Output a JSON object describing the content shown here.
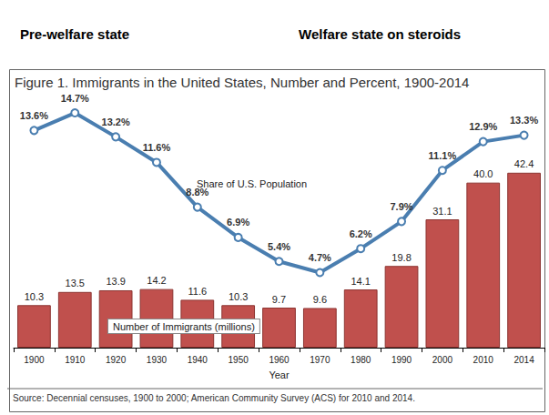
{
  "chart_data": {
    "type": "bar",
    "title": "Figure 1. Immigrants in the United States, Number and Percent, 1900-2014",
    "annotations": [
      "Pre-welfare state",
      "Welfare state on steroids",
      "Source: Decennial censuses, 1900 to 2000; American Community Survey (ACS) for 2010 and 2014."
    ],
    "xlabel": "Year",
    "categories": [
      "1900",
      "1910",
      "1920",
      "1930",
      "1940",
      "1950",
      "1960",
      "1970",
      "1980",
      "1990",
      "2000",
      "2010",
      "2014"
    ],
    "series": [
      {
        "name": "Number of Immigrants (millions)",
        "type": "bar",
        "color": "#c0504d",
        "values": [
          10.3,
          13.5,
          13.9,
          14.2,
          11.6,
          10.3,
          9.7,
          9.6,
          14.1,
          19.8,
          31.1,
          40.0,
          42.4
        ],
        "value_labels": [
          "10.3",
          "13.5",
          "13.9",
          "14.2",
          "11.6",
          "10.3",
          "9.7",
          "9.6",
          "14.1",
          "19.8",
          "31.1",
          "40.0",
          "42.4"
        ]
      },
      {
        "name": "Share of U.S. Population",
        "type": "line",
        "axis": "y2",
        "color": "#4a7eb0",
        "marker": "circle",
        "values": [
          13.6,
          14.7,
          13.2,
          11.6,
          8.8,
          6.9,
          5.4,
          4.7,
          6.2,
          7.9,
          11.1,
          12.9,
          13.3
        ],
        "value_labels": [
          "13.6%",
          "14.7%",
          "13.2%",
          "11.6%",
          "8.8%",
          "6.9%",
          "5.4%",
          "4.7%",
          "6.2%",
          "7.9%",
          "11.1%",
          "12.9%",
          "13.3%"
        ]
      }
    ],
    "ylim": [
      0,
      60
    ],
    "yticks": [
      0,
      60
    ],
    "y2lim": [
      0,
      15.5
    ],
    "y2ticks": [
      0,
      15.5
    ],
    "grid": false,
    "tick_labels": "x",
    "data_labels": true
  }
}
